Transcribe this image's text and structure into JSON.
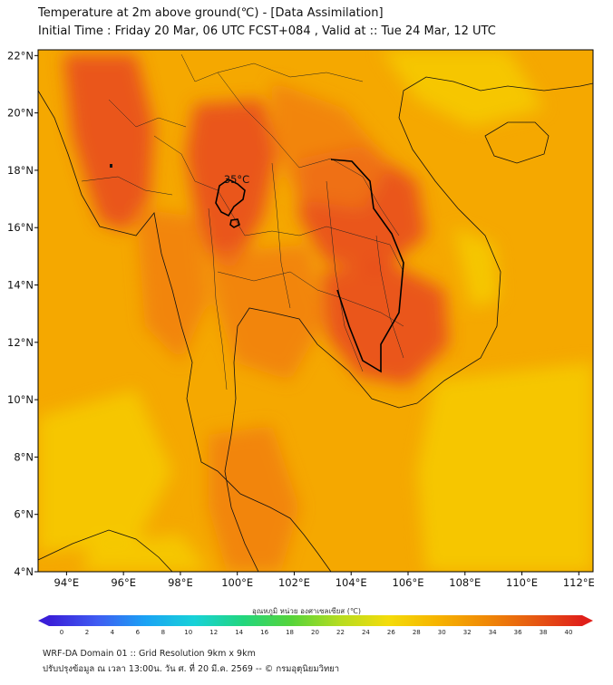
{
  "title": "Temperature at 2m above ground(℃) - [Data Assimilation]",
  "subtitle": "Initial Time : Friday 20 Mar, 06 UTC FCST+084 , Valid at :: Tue 24 Mar, 12 UTC",
  "map": {
    "lon_range": [
      93,
      112.5
    ],
    "lat_range": [
      4,
      22.2
    ],
    "lon_ticks": [
      "94°E",
      "96°E",
      "98°E",
      "100°E",
      "102°E",
      "104°E",
      "106°E",
      "108°E",
      "110°E",
      "112°E"
    ],
    "lat_ticks": [
      "4°N",
      "6°N",
      "8°N",
      "10°N",
      "12°N",
      "14°N",
      "16°N",
      "18°N",
      "20°N",
      "22°N"
    ],
    "contour_label": "35°C",
    "colors": {
      "base": "#f5a800",
      "warm": "#f07a10",
      "hot": "#e8481c",
      "cool": "#f6d000",
      "coast": "#111111"
    }
  },
  "colorbar": {
    "title": "อุณหภูมิ หน่วย องศาเซลเซียส (℃)",
    "ticks": [
      "0",
      "2",
      "4",
      "6",
      "8",
      "10",
      "12",
      "14",
      "16",
      "18",
      "20",
      "22",
      "24",
      "26",
      "28",
      "30",
      "32",
      "34",
      "36",
      "38",
      "40"
    ],
    "stops": [
      "#3a1fd8",
      "#3f5cf2",
      "#1aa3f4",
      "#18d2d8",
      "#22d67e",
      "#56d43a",
      "#b6dc20",
      "#f4dc0a",
      "#f6b400",
      "#f08a06",
      "#e65a12",
      "#e0201a"
    ]
  },
  "footer": {
    "line1": "WRF-DA Domain 01 :: Grid Resolution 9km x 9km",
    "line2": "ปรับปรุงข้อมูล ณ เวลา 13:00น. วัน ศ. ที่ 20 มี.ค. 2569 -- © กรมอุตุนิยมวิทยา"
  }
}
